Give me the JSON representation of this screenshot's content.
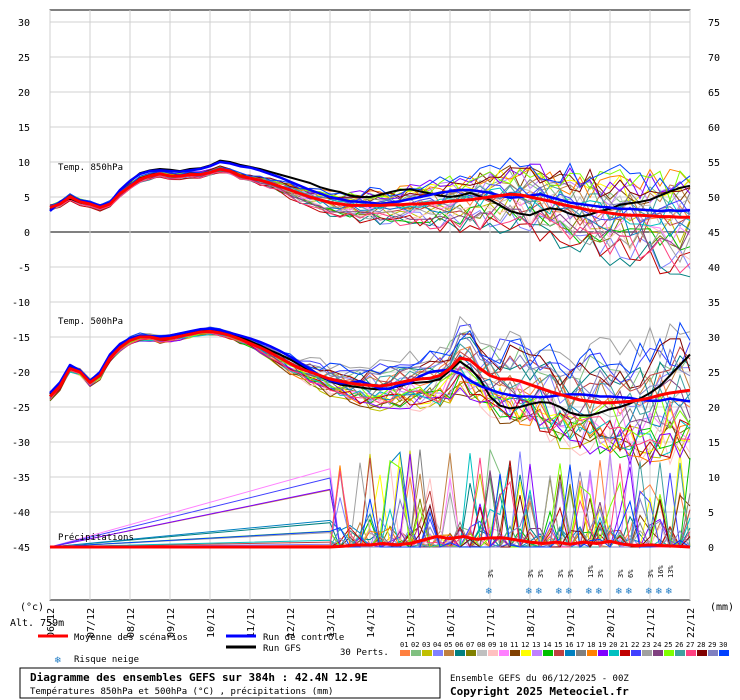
{
  "chart_data": {
    "type": "line",
    "title": "Diagramme des ensembles GEFS sur 384h : 42.4N 12.9E",
    "subtitle": "Températures 850hPa et 500hPa (°C) , précipitations (mm)",
    "source_line": "Ensemble GEFS du 06/12/2025 - 00Z",
    "copyright": "Copyright 2025 Meteociel.fr",
    "altitude": "Alt. 759m",
    "left_unit": "(°c)",
    "right_unit": "(mm)",
    "x_labels": [
      "07/12",
      "08/12",
      "09/12",
      "10/12",
      "11/12",
      "12/12",
      "13/12",
      "14/12",
      "15/12",
      "16/12",
      "17/12",
      "18/12",
      "19/12",
      "20/12",
      "21/12",
      "22/12"
    ],
    "y_left": {
      "ticks": [
        30,
        25,
        20,
        15,
        10,
        5,
        0,
        -5,
        -10,
        -15,
        -20,
        -25,
        -30,
        -35,
        -40,
        -45
      ]
    },
    "y_right": {
      "ticks": [
        75,
        70,
        65,
        60,
        55,
        50,
        45,
        40,
        35,
        30,
        25,
        20,
        15,
        10,
        5,
        0
      ]
    },
    "panels": {
      "t850_label": "Temp. 850hPa",
      "t500_label": "Temp. 500hPa",
      "precip_label": "Précipitations"
    },
    "legend": {
      "mean": "Moyenne des scénarios",
      "control": "Run de contrôle",
      "gfs": "Run GFS",
      "snow": "Risque neige",
      "perts": "30 Perts.",
      "members": [
        "01",
        "02",
        "03",
        "04",
        "05",
        "06",
        "07",
        "08",
        "09",
        "10",
        "11",
        "12",
        "13",
        "14",
        "15",
        "16",
        "17",
        "18",
        "19",
        "20",
        "21",
        "22",
        "23",
        "24",
        "25",
        "26",
        "27",
        "28",
        "29",
        "30"
      ]
    },
    "colors": {
      "mean": "#ff0000",
      "control": "#0000ff",
      "gfs": "#000000",
      "snow": "#4aa3e0",
      "members": [
        "#ff8040",
        "#80c080",
        "#c0c000",
        "#8080ff",
        "#c08040",
        "#008080",
        "#808000",
        "#c0c0c0",
        "#ffc0c0",
        "#ff80ff",
        "#804000",
        "#ffff00",
        "#c080ff",
        "#00c000",
        "#c04040",
        "#0080c0",
        "#808080",
        "#ff8000",
        "#8000ff",
        "#00c0c0",
        "#c00000",
        "#4040ff",
        "#a0a0a0",
        "#804080",
        "#80ff00",
        "#40a0a0",
        "#ff4080",
        "#800000",
        "#8080c0",
        "#0040ff"
      ]
    },
    "series": {
      "mean_850": {
        "x": [
          0,
          6,
          12,
          18,
          24,
          30,
          36,
          42,
          48,
          54,
          60,
          66,
          72,
          78,
          84,
          90,
          96,
          102,
          108,
          114,
          120,
          126,
          132,
          138,
          144,
          150,
          156,
          162,
          168,
          174,
          180,
          186,
          192,
          198,
          204,
          210,
          216,
          222,
          228,
          234,
          240,
          246,
          252,
          258,
          264,
          270,
          276,
          282,
          288,
          294,
          300,
          306,
          312,
          318,
          324,
          330,
          336,
          342,
          348,
          354,
          360,
          366,
          372,
          378,
          384
        ],
        "y": [
          3.5,
          4,
          5,
          4.3,
          4,
          3.5,
          4,
          5.5,
          6.5,
          7.5,
          8,
          8.3,
          8,
          8,
          8.2,
          8.2,
          8.5,
          9,
          8.7,
          8,
          7.7,
          7.4,
          7,
          6.5,
          6,
          5.5,
          5,
          4.6,
          4.2,
          4,
          3.8,
          3.8,
          3.8,
          3.8,
          3.9,
          3.9,
          4,
          4,
          4.1,
          4.2,
          4.4,
          4.5,
          4.6,
          4.8,
          5,
          5.2,
          5.4,
          5.3,
          5,
          4.7,
          4.4,
          4,
          3.7,
          3.4,
          3.1,
          2.9,
          2.7,
          2.5,
          2.4,
          2.4,
          2.3,
          2.2,
          2.2,
          2.1,
          2.1
        ]
      },
      "control_850": {
        "x": [
          0,
          6,
          12,
          18,
          24,
          30,
          36,
          42,
          48,
          54,
          60,
          66,
          72,
          78,
          84,
          90,
          96,
          102,
          108,
          114,
          120,
          126,
          132,
          138,
          144,
          150,
          156,
          162,
          168,
          174,
          180,
          186,
          192,
          198,
          204,
          210,
          216,
          222,
          228,
          234,
          240,
          246,
          252,
          258,
          264,
          270,
          276,
          282,
          288,
          294,
          300,
          306,
          312,
          318,
          324,
          330,
          336,
          342,
          348,
          354,
          360,
          366,
          372,
          378,
          384
        ],
        "y": [
          3,
          4.3,
          5,
          4.5,
          4.2,
          3.7,
          4.2,
          6,
          7.3,
          8.3,
          8.7,
          8.8,
          8.7,
          8.6,
          8.8,
          9,
          9.4,
          10,
          9.8,
          9.4,
          9.2,
          8.8,
          8.3,
          7.8,
          7.2,
          6.6,
          6,
          5.5,
          5,
          4.7,
          4.4,
          4.3,
          4.2,
          4,
          4.2,
          4.4,
          4.7,
          5,
          5.3,
          5.6,
          5.8,
          6,
          6,
          5.8,
          5.6,
          5.2,
          4.9,
          5,
          5.2,
          5.4,
          5,
          4.6,
          4.2,
          4,
          3.8,
          3.6,
          3.5,
          3.3,
          3.3,
          3.2,
          3.1,
          3,
          3.1,
          3,
          3.1
        ]
      },
      "gfs_850": {
        "x": [
          0,
          6,
          12,
          18,
          24,
          30,
          36,
          42,
          48,
          54,
          60,
          66,
          72,
          78,
          84,
          90,
          96,
          102,
          108,
          114,
          120,
          126,
          132,
          138,
          144,
          150,
          156,
          162,
          168,
          174,
          180,
          186,
          192,
          198,
          204,
          210,
          216,
          222,
          228,
          234,
          240,
          246,
          252,
          258,
          264,
          270,
          276,
          282,
          288,
          294,
          300,
          306,
          312,
          318,
          324,
          330,
          336,
          342,
          348,
          354,
          360,
          366,
          372,
          378,
          384
        ],
        "y": [
          3.2,
          4.1,
          4.8,
          4.2,
          4,
          3.6,
          4.1,
          6,
          7.2,
          8.4,
          8.8,
          9,
          8.9,
          8.7,
          9,
          9.1,
          9.5,
          10.2,
          10,
          9.6,
          9.3,
          9,
          8.6,
          8.2,
          7.8,
          7.4,
          7,
          6.4,
          6,
          5.7,
          5.2,
          5,
          5,
          5.3,
          5.7,
          6,
          6.1,
          5.8,
          5.5,
          5.2,
          5,
          5.2,
          5.6,
          5.1,
          4.6,
          3.8,
          3,
          2.6,
          2.4,
          3,
          3.4,
          3.2,
          2.6,
          2.2,
          2.5,
          3,
          3.3,
          3.9,
          4.1,
          4.3,
          4.6,
          5.2,
          5.8,
          6.3,
          6.6
        ]
      },
      "mean_500": {
        "x": [
          0,
          6,
          12,
          18,
          24,
          30,
          36,
          42,
          48,
          54,
          60,
          66,
          72,
          78,
          84,
          90,
          96,
          102,
          108,
          114,
          120,
          126,
          132,
          138,
          144,
          150,
          156,
          162,
          168,
          174,
          180,
          186,
          192,
          198,
          204,
          210,
          216,
          222,
          228,
          234,
          240,
          246,
          252,
          258,
          264,
          270,
          276,
          282,
          288,
          294,
          300,
          306,
          312,
          318,
          324,
          330,
          336,
          342,
          348,
          354,
          360,
          366,
          372,
          378,
          384
        ],
        "y": [
          -23.5,
          -22,
          -19.5,
          -20,
          -21.5,
          -20.5,
          -18,
          -16.5,
          -15.5,
          -15,
          -15,
          -15.3,
          -15.2,
          -14.9,
          -14.6,
          -14.3,
          -14.2,
          -14.4,
          -14.8,
          -15.3,
          -15.9,
          -16.5,
          -17.2,
          -18,
          -18.8,
          -19.5,
          -20,
          -20.5,
          -21,
          -21.3,
          -21.6,
          -21.8,
          -21.9,
          -22,
          -21.8,
          -21.5,
          -21.2,
          -21,
          -20.9,
          -20.5,
          -19.5,
          -18,
          -18.3,
          -19.5,
          -20.5,
          -21,
          -21,
          -21.3,
          -21.8,
          -22.3,
          -22.8,
          -23.2,
          -23.6,
          -24,
          -24.2,
          -24.4,
          -24.4,
          -24.3,
          -24.2,
          -24,
          -23.7,
          -23.3,
          -23,
          -22.8,
          -22.6
        ]
      },
      "control_500": {
        "x": [
          0,
          6,
          12,
          18,
          24,
          30,
          36,
          42,
          48,
          54,
          60,
          66,
          72,
          78,
          84,
          90,
          96,
          102,
          108,
          114,
          120,
          126,
          132,
          138,
          144,
          150,
          156,
          162,
          168,
          174,
          180,
          186,
          192,
          198,
          204,
          210,
          216,
          222,
          228,
          234,
          240,
          246,
          252,
          258,
          264,
          270,
          276,
          282,
          288,
          294,
          300,
          306,
          312,
          318,
          324,
          330,
          336,
          342,
          348,
          354,
          360,
          366,
          372,
          378,
          384
        ],
        "y": [
          -23,
          -21.5,
          -19,
          -19.8,
          -21.3,
          -20,
          -17.5,
          -16,
          -15.2,
          -14.8,
          -14.9,
          -15,
          -14.8,
          -14.5,
          -14.2,
          -13.9,
          -13.8,
          -14,
          -14.4,
          -14.8,
          -15.2,
          -15.7,
          -16.3,
          -17,
          -17.8,
          -18.7,
          -19.6,
          -20.5,
          -21.2,
          -21.6,
          -21.6,
          -21.3,
          -21.8,
          -22.4,
          -22.4,
          -21.8,
          -21.6,
          -20.6,
          -20,
          -19.8,
          -19.7,
          -20.2,
          -21.2,
          -22,
          -22.5,
          -23,
          -23.3,
          -23.5,
          -23.5,
          -23.6,
          -23.5,
          -23.3,
          -23.2,
          -23.2,
          -23.3,
          -23.5,
          -23.5,
          -23.6,
          -23.7,
          -24,
          -24.1,
          -24.1,
          -23.8,
          -24,
          -24.2
        ]
      },
      "gfs_500": {
        "x": [
          0,
          6,
          12,
          18,
          24,
          30,
          36,
          42,
          48,
          54,
          60,
          66,
          72,
          78,
          84,
          90,
          96,
          102,
          108,
          114,
          120,
          126,
          132,
          138,
          144,
          150,
          156,
          162,
          168,
          174,
          180,
          186,
          192,
          198,
          204,
          210,
          216,
          222,
          228,
          234,
          240,
          246,
          252,
          258,
          264,
          270,
          276,
          282,
          288,
          294,
          300,
          306,
          312,
          318,
          324,
          330,
          336,
          342,
          348,
          354,
          360,
          366,
          372,
          378,
          384
        ],
        "y": [
          -23.2,
          -21.8,
          -19.3,
          -20,
          -21.5,
          -20.2,
          -17.8,
          -16.2,
          -15.3,
          -14.9,
          -15,
          -15.2,
          -15,
          -14.7,
          -14.5,
          -14.2,
          -14,
          -14.1,
          -14.5,
          -15,
          -15.6,
          -16.2,
          -16.9,
          -17.5,
          -18.2,
          -19,
          -19.8,
          -20.6,
          -21.3,
          -21.8,
          -22,
          -22.2,
          -22.4,
          -22.5,
          -22.3,
          -22,
          -21.6,
          -21.5,
          -21.4,
          -21,
          -19.8,
          -18.5,
          -19.5,
          -21,
          -23.5,
          -24.8,
          -25.2,
          -25,
          -24.6,
          -24.3,
          -24.4,
          -25,
          -25.8,
          -26.2,
          -26.2,
          -25.8,
          -25.3,
          -25,
          -24.5,
          -23.8,
          -23,
          -22,
          -20.5,
          -19,
          -17.5
        ]
      },
      "mean_precip": {
        "x": [
          0,
          24,
          48,
          72,
          96,
          120,
          144,
          160,
          168,
          176,
          184,
          192,
          200,
          208,
          216,
          224,
          232,
          240,
          248,
          256,
          264,
          272,
          280,
          288,
          296,
          304,
          312,
          320,
          328,
          336,
          344,
          352,
          360,
          368,
          376,
          384
        ],
        "y": [
          -45,
          -45,
          -45,
          -45,
          -45,
          -45,
          -45,
          -45,
          -45,
          -44.9,
          -44.7,
          -44.7,
          -44.5,
          -44.7,
          -44.5,
          -44,
          -43.5,
          -43.8,
          -43.5,
          -43.9,
          -43.7,
          -43.7,
          -44,
          -44.3,
          -44.5,
          -44.3,
          -44.6,
          -44.3,
          -44.5,
          -44.2,
          -44.6,
          -44.8,
          -44.7,
          -44.8,
          -44.9,
          -45
        ]
      }
    },
    "snow_markers": [
      {
        "x": 264,
        "labels": [
          "3%"
        ]
      },
      {
        "x": 288,
        "labels": [
          "3%"
        ]
      },
      {
        "x": 294,
        "labels": [
          "3%"
        ]
      },
      {
        "x": 306,
        "labels": [
          "3%"
        ]
      },
      {
        "x": 312,
        "labels": [
          "3%"
        ]
      },
      {
        "x": 324,
        "labels": [
          "13%"
        ]
      },
      {
        "x": 330,
        "labels": [
          "3%"
        ]
      },
      {
        "x": 342,
        "labels": [
          "3%"
        ]
      },
      {
        "x": 348,
        "labels": [
          "6%"
        ]
      },
      {
        "x": 360,
        "labels": [
          "3%"
        ]
      },
      {
        "x": 366,
        "labels": [
          "16%"
        ]
      },
      {
        "x": 372,
        "labels": [
          "13%"
        ]
      }
    ]
  }
}
